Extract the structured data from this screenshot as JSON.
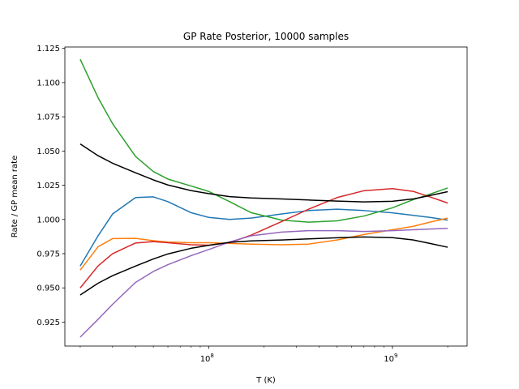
{
  "chart_data": {
    "type": "line",
    "title": "GP Rate Posterior, 10000 samples",
    "xlabel": "T (K)",
    "ylabel": "Rate / GP mean rate",
    "xscale": "log",
    "xlim": [
      16500000,
      2550000000
    ],
    "ylim": [
      0.9075,
      1.126
    ],
    "x_major_ticks": [
      {
        "value": 100000000,
        "base": "10",
        "exp": "8"
      },
      {
        "value": 1000000000,
        "base": "10",
        "exp": "9"
      }
    ],
    "y_ticks": [
      0.925,
      0.95,
      0.975,
      1.0,
      1.025,
      1.05,
      1.075,
      1.1,
      1.125
    ],
    "y_tick_labels": [
      "0.925",
      "0.950",
      "0.975",
      "1.000",
      "1.025",
      "1.050",
      "1.075",
      "1.100",
      "1.125"
    ],
    "grid": false,
    "legend": "none",
    "x": [
      20000000,
      25000000,
      30000000,
      40000000,
      50000000,
      60000000,
      80000000,
      100000000,
      130000000,
      170000000,
      250000000,
      350000000,
      500000000,
      700000000,
      1000000000,
      1300000000,
      1600000000,
      2000000000
    ],
    "series": [
      {
        "color": "#1f77b4",
        "values": [
          0.966,
          0.988,
          1.004,
          1.016,
          1.0165,
          1.013,
          1.005,
          1.0015,
          1.0,
          1.001,
          1.004,
          1.0065,
          1.0075,
          1.0065,
          1.0048,
          1.003,
          1.0015,
          0.9995
        ]
      },
      {
        "color": "#ff7f0e",
        "values": [
          0.963,
          0.98,
          0.986,
          0.9862,
          0.9845,
          0.9835,
          0.983,
          0.983,
          0.9825,
          0.982,
          0.9815,
          0.982,
          0.985,
          0.989,
          0.9925,
          0.995,
          0.998,
          1.001
        ]
      },
      {
        "color": "#2ca02c",
        "values": [
          1.117,
          1.089,
          1.07,
          1.046,
          1.035,
          1.0295,
          1.0245,
          1.0205,
          1.013,
          1.005,
          0.9995,
          0.998,
          0.999,
          1.0025,
          1.0085,
          1.0145,
          1.0185,
          1.023
        ]
      },
      {
        "color": "#d62728",
        "values": [
          0.95,
          0.966,
          0.975,
          0.9828,
          0.9838,
          0.983,
          0.9815,
          0.9812,
          0.983,
          0.9885,
          0.9985,
          1.0075,
          1.016,
          1.021,
          1.0225,
          1.0205,
          1.0165,
          1.012
        ]
      },
      {
        "color": "#9467bd",
        "values": [
          0.914,
          0.927,
          0.938,
          0.954,
          0.962,
          0.967,
          0.9735,
          0.978,
          0.9835,
          0.988,
          0.9908,
          0.9918,
          0.9918,
          0.9912,
          0.9918,
          0.9925,
          0.993,
          0.9935
        ]
      },
      {
        "color": "#000000",
        "values": [
          1.0552,
          1.0466,
          1.0411,
          1.0341,
          1.0289,
          1.0252,
          1.0211,
          1.0189,
          1.0167,
          1.0157,
          1.015,
          1.0142,
          1.0134,
          1.0128,
          1.0133,
          1.015,
          1.0175,
          1.0203
        ]
      },
      {
        "color": "#000000",
        "values": [
          0.9448,
          0.9534,
          0.9589,
          0.9659,
          0.9711,
          0.9748,
          0.9789,
          0.9811,
          0.9833,
          0.9843,
          0.985,
          0.9858,
          0.9866,
          0.9872,
          0.9867,
          0.985,
          0.9825,
          0.9797
        ]
      }
    ]
  }
}
